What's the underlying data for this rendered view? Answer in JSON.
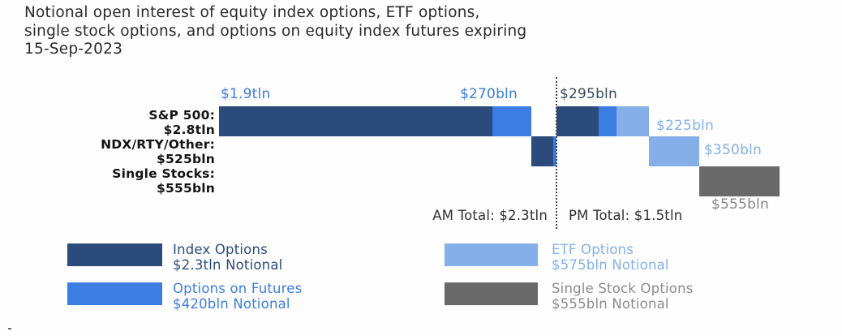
{
  "title": {
    "lines": [
      "Notional open interest of equity index options, ETF options,",
      "single stock options, and options on equity index futures expiring",
      "15-Sep-2023"
    ]
  },
  "chart_data": {
    "type": "bar",
    "subtype": "horizontal-waterfall",
    "title": "Notional open interest of equity index options, ETF options, single stock options, and options on equity index futures expiring 15-Sep-2023",
    "unit": "USD billions notional",
    "rows": [
      {
        "category_label": "S&P 500:",
        "total_label": "$2.8tln",
        "segments": [
          {
            "series": "Index Options",
            "session": "AM",
            "value_bln": 1900,
            "label": "$1.9tln"
          },
          {
            "series": "Options on Futures",
            "session": "AM",
            "value_bln": 270,
            "label": "$270bln"
          },
          {
            "series": "Index Options",
            "session": "PM",
            "value_bln": 295,
            "label": "$295bln"
          },
          {
            "series": "Options on Futures",
            "session": "PM",
            "value_bln": 125,
            "label": "",
            "estimated": true
          },
          {
            "series": "ETF Options",
            "session": "PM",
            "value_bln": 225,
            "label": "$225bln"
          }
        ]
      },
      {
        "category_label": "NDX/RTY/Other:",
        "total_label": "$525bln",
        "segments": [
          {
            "series": "Index Options",
            "session": "AM",
            "value_bln": 150,
            "label": "",
            "estimated": true
          },
          {
            "series": "Options on Futures",
            "session": "AM",
            "value_bln": 25,
            "label": "",
            "estimated": true
          },
          {
            "series": "ETF Options",
            "session": "PM",
            "value_bln": 350,
            "label": "$350bln"
          }
        ]
      },
      {
        "category_label": "Single Stocks:",
        "total_label": "$555bln",
        "segments": [
          {
            "series": "Single Stock Options",
            "session": "PM",
            "value_bln": 555,
            "label": "$555bln"
          }
        ]
      }
    ],
    "value_labels": {
      "am_sp_index": {
        "text": "$1.9tln",
        "color": "#3b7de1"
      },
      "am_sp_futures": {
        "text": "$270bln",
        "color": "#3b7de1"
      },
      "pm_sp_index": {
        "text": "$295bln",
        "color": "#3a4a5e"
      },
      "pm_sp_etf": {
        "text": "$225bln",
        "color": "#84afe8"
      },
      "pm_ndx_etf": {
        "text": "$350bln",
        "color": "#84afe8"
      },
      "pm_single_stock": {
        "text": "$555bln",
        "color": "#878787"
      }
    },
    "am_total_label": "AM Total: $2.3tln",
    "pm_total_label": "PM Total: $1.5tln",
    "legend": [
      {
        "name": "Index Options",
        "notional": "$2.3tln Notional",
        "color": "#2a4b7c"
      },
      {
        "name": "Options on Futures",
        "notional": "$420bln Notional",
        "color": "#3b7de1"
      },
      {
        "name": "ETF Options",
        "notional": "$575bln Notional",
        "color": "#84afe8"
      },
      {
        "name": "Single Stock Options",
        "notional": "$555bln Notional",
        "color": "#696969",
        "text_color": "#8c8c8c"
      }
    ],
    "layout": {
      "orientation": "horizontal",
      "am_pm_divider": "dotted vertical line separating AM-settled and PM-settled open interest",
      "legend_position": "bottom, two columns"
    }
  }
}
